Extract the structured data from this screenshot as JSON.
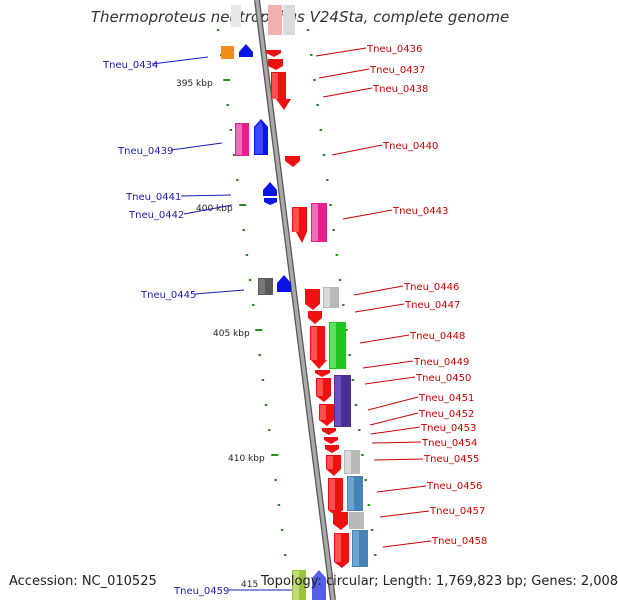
{
  "title": "Thermoproteus neutrophilus V24Sta, complete genome",
  "accession": "Accession: NC_010525",
  "summary": "Topology: circular; Length: 1,769,823 bp; Genes: 2,008",
  "colors": {
    "backbone": "#8a8a8a",
    "tick": "#2e8b22",
    "left_label": "#1a1ab8",
    "right_label": "#cc0000"
  },
  "kbp_markers": [
    "395 kbp",
    "400 kbp",
    "405 kbp",
    "410 kbp",
    "415"
  ],
  "genes_left": [
    {
      "label": "Tneu_0434"
    },
    {
      "label": "Tneu_0439"
    },
    {
      "label": "Tneu_0441"
    },
    {
      "label": "Tneu_0442"
    },
    {
      "label": "Tneu_0445"
    },
    {
      "label": "Tneu_0459"
    }
  ],
  "genes_right": [
    {
      "label": "Tneu_0436"
    },
    {
      "label": "Tneu_0437"
    },
    {
      "label": "Tneu_0438"
    },
    {
      "label": "Tneu_0440"
    },
    {
      "label": "Tneu_0443"
    },
    {
      "label": "Tneu_0446"
    },
    {
      "label": "Tneu_0447"
    },
    {
      "label": "Tneu_0448"
    },
    {
      "label": "Tneu_0449"
    },
    {
      "label": "Tneu_0450"
    },
    {
      "label": "Tneu_0451"
    },
    {
      "label": "Tneu_0452"
    },
    {
      "label": "Tneu_0453"
    },
    {
      "label": "Tneu_0454"
    },
    {
      "label": "Tneu_0455"
    },
    {
      "label": "Tneu_0456"
    },
    {
      "label": "Tneu_0457"
    },
    {
      "label": "Tneu_0458"
    }
  ]
}
